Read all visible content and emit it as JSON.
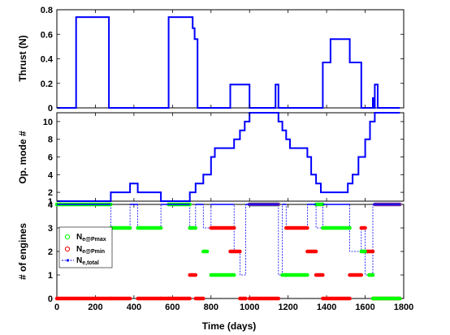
{
  "chart_data": [
    {
      "type": "line",
      "ylabel": "Thrust (N)",
      "xlim": [
        0,
        1800
      ],
      "ylim": [
        0,
        0.8
      ],
      "yticks": [
        "0",
        "0.2",
        "0.4",
        "0.6",
        "0.8"
      ],
      "color": "#0000ff",
      "series": [
        {
          "x": [
            0,
            100,
            100,
            270,
            270,
            580,
            580,
            705,
            705,
            715,
            715,
            730,
            730,
            900,
            900,
            1000,
            1000,
            1135,
            1135,
            1150,
            1150,
            1380,
            1380,
            1420,
            1420,
            1520,
            1520,
            1580,
            1580,
            1640,
            1640,
            1645,
            1645,
            1650,
            1650,
            1665,
            1665,
            1670,
            1670,
            1780
          ],
          "y": [
            0,
            0,
            0.74,
            0.74,
            0,
            0,
            0.74,
            0.74,
            0.65,
            0.65,
            0.56,
            0.56,
            0,
            0,
            0.19,
            0.19,
            0,
            0,
            0.19,
            0.19,
            0,
            0,
            0.37,
            0.37,
            0.56,
            0.56,
            0.37,
            0.37,
            0,
            0,
            0.08,
            0.08,
            0,
            0,
            0.19,
            0.19,
            0,
            0,
            0,
            0
          ]
        }
      ]
    },
    {
      "type": "line",
      "ylabel": "Op. mode #",
      "xlim": [
        0,
        1800
      ],
      "ylim": [
        1,
        11
      ],
      "yticks": [
        "1",
        "2",
        "4",
        "6",
        "8",
        "10"
      ],
      "color": "#0000ff",
      "series": [
        {
          "x": [
            0,
            280,
            280,
            380,
            380,
            420,
            420,
            540,
            540,
            690,
            690,
            720,
            720,
            760,
            760,
            800,
            800,
            820,
            820,
            920,
            920,
            950,
            950,
            975,
            975,
            1000,
            1000,
            1150,
            1150,
            1170,
            1170,
            1190,
            1190,
            1210,
            1210,
            1300,
            1300,
            1320,
            1320,
            1345,
            1345,
            1370,
            1370,
            1510,
            1510,
            1535,
            1535,
            1565,
            1565,
            1600,
            1600,
            1625,
            1625,
            1650,
            1650,
            1780
          ],
          "y": [
            1,
            1,
            2,
            2,
            3,
            3,
            2,
            2,
            1,
            1,
            2,
            2,
            3,
            3,
            4,
            4,
            6,
            6,
            7,
            7,
            8,
            8,
            9,
            9,
            10,
            10,
            11,
            11,
            10,
            10,
            9,
            9,
            8,
            8,
            7,
            7,
            6,
            6,
            4,
            4,
            3,
            3,
            2,
            2,
            3,
            3,
            4,
            4,
            6,
            6,
            8,
            8,
            10,
            10,
            11,
            11
          ]
        }
      ]
    },
    {
      "type": "scatter",
      "xlabel": "Time (days)",
      "ylabel": "# of engines",
      "xlim": [
        0,
        1800
      ],
      "ylim": [
        0,
        4
      ],
      "xticks": [
        "0",
        "200",
        "400",
        "600",
        "800",
        "1000",
        "1200",
        "1400",
        "1600",
        "1800"
      ],
      "yticks": [
        "0",
        "1",
        "2",
        "3",
        "4"
      ],
      "legend_location": "left",
      "legend": [
        {
          "base": "N",
          "sub": "e@Pmax"
        },
        {
          "base": "N",
          "sub": "e@Pmin"
        },
        {
          "base": "N",
          "sub": "e,total"
        }
      ],
      "segments": {
        "green": [
          [
            0,
            280,
            4
          ],
          [
            580,
            690,
            4
          ],
          [
            280,
            380,
            3
          ],
          [
            420,
            540,
            3
          ],
          [
            690,
            720,
            3
          ],
          [
            760,
            780,
            2
          ],
          [
            800,
            920,
            1
          ],
          [
            1000,
            1150,
            4
          ],
          [
            1170,
            1190,
            1
          ],
          [
            1190,
            1300,
            1
          ],
          [
            1345,
            1380,
            4
          ],
          [
            1380,
            1520,
            3
          ],
          [
            1580,
            1600,
            2
          ],
          [
            1620,
            1640,
            1
          ],
          [
            1640,
            1780,
            0
          ]
        ],
        "red": [
          [
            0,
            280,
            0
          ],
          [
            280,
            380,
            0
          ],
          [
            420,
            540,
            0
          ],
          [
            540,
            580,
            0
          ],
          [
            580,
            690,
            0
          ],
          [
            690,
            720,
            1
          ],
          [
            720,
            760,
            0
          ],
          [
            800,
            920,
            3
          ],
          [
            900,
            950,
            2
          ],
          [
            950,
            980,
            0
          ],
          [
            1000,
            1150,
            0
          ],
          [
            1190,
            1300,
            3
          ],
          [
            1300,
            1345,
            2
          ],
          [
            1345,
            1380,
            1
          ],
          [
            1380,
            1520,
            0
          ],
          [
            1520,
            1580,
            1
          ],
          [
            1580,
            1600,
            3
          ],
          [
            1600,
            1640,
            2
          ],
          [
            1640,
            1780,
            0
          ]
        ],
        "purple": [
          [
            1000,
            1150,
            4
          ],
          [
            1650,
            1780,
            4
          ]
        ]
      },
      "total": {
        "x": [
          0,
          280,
          280,
          380,
          380,
          420,
          420,
          540,
          540,
          690,
          690,
          720,
          720,
          760,
          760,
          800,
          800,
          920,
          920,
          950,
          950,
          980,
          980,
          1000,
          1000,
          1150,
          1150,
          1170,
          1170,
          1190,
          1190,
          1300,
          1300,
          1345,
          1345,
          1380,
          1380,
          1520,
          1520,
          1580,
          1580,
          1600,
          1600,
          1640,
          1640,
          1650,
          1650,
          1780
        ],
        "y": [
          4,
          4,
          3,
          3,
          4,
          4,
          3,
          3,
          4,
          4,
          3,
          3,
          4,
          4,
          3,
          3,
          4,
          4,
          2,
          2,
          1,
          1,
          4,
          4,
          4,
          4,
          1,
          1,
          4,
          4,
          3,
          3,
          4,
          4,
          3,
          3,
          4,
          4,
          2,
          2,
          3,
          3,
          1,
          1,
          4,
          4,
          4,
          4
        ],
        "color": "#0000ff"
      },
      "colors": {
        "green": "#00ff00",
        "red": "#ff0000",
        "total": "#0000ff",
        "purple": "#7030a0"
      }
    }
  ]
}
